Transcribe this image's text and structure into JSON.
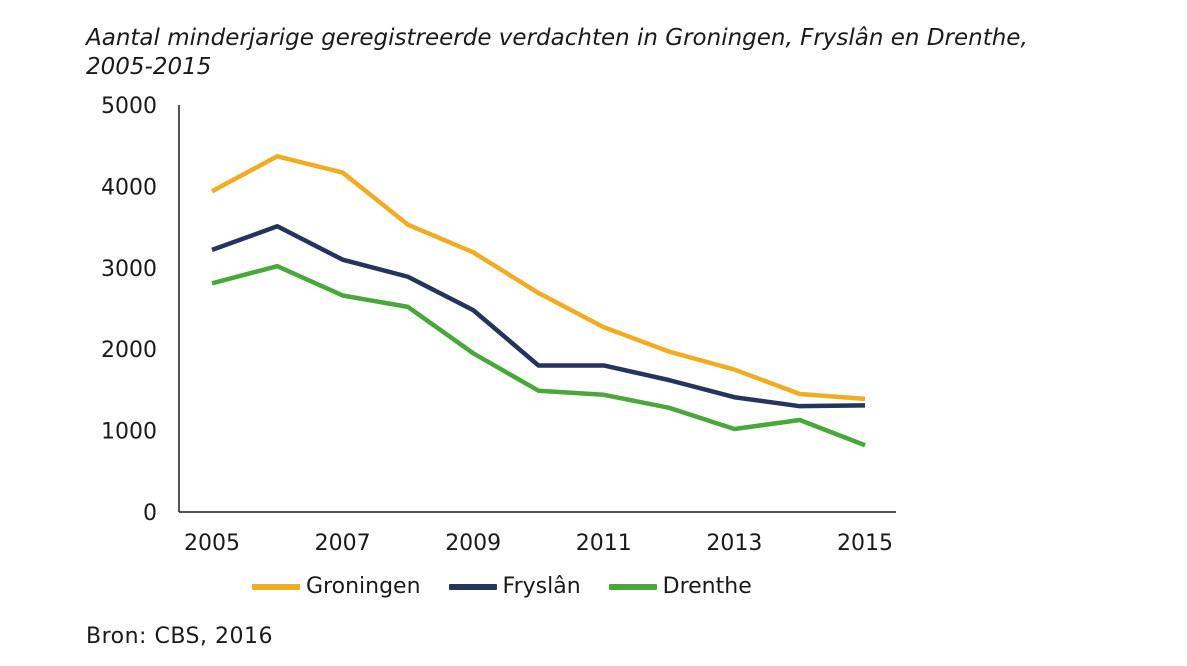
{
  "title_line1": "Aantal minderjarige geregistreerde verdachten in Groningen, Fryslân en Drenthe,",
  "title_line2": "2005-2015",
  "source": "Bron: CBS, 2016",
  "chart_data": {
    "type": "line",
    "title": "Aantal minderjarige geregistreerde verdachten in Groningen, Fryslân en Drenthe, 2005-2015",
    "xlabel": "",
    "ylabel": "",
    "x": [
      2005,
      2006,
      2007,
      2008,
      2009,
      2010,
      2011,
      2012,
      2013,
      2014,
      2015
    ],
    "x_tick_labels": [
      "2005",
      "2007",
      "2009",
      "2011",
      "2013",
      "2015"
    ],
    "y_tick_labels": [
      "5000",
      "4000",
      "3000",
      "2000",
      "1000",
      "0"
    ],
    "ylim": [
      0,
      5000
    ],
    "grid": false,
    "legend_position": "bottom",
    "series": [
      {
        "name": "Groningen",
        "color": "#f0ac22",
        "values": [
          3940,
          4370,
          4170,
          3530,
          3190,
          2690,
          2270,
          1970,
          1750,
          1450,
          1390
        ]
      },
      {
        "name": "Fryslân",
        "color": "#24345f",
        "values": [
          3220,
          3510,
          3100,
          2890,
          2480,
          1800,
          1800,
          1620,
          1410,
          1300,
          1310
        ]
      },
      {
        "name": "Drenthe",
        "color": "#4aa73c",
        "values": [
          2810,
          3020,
          2660,
          2520,
          1950,
          1490,
          1440,
          1280,
          1020,
          1130,
          820
        ]
      }
    ]
  }
}
